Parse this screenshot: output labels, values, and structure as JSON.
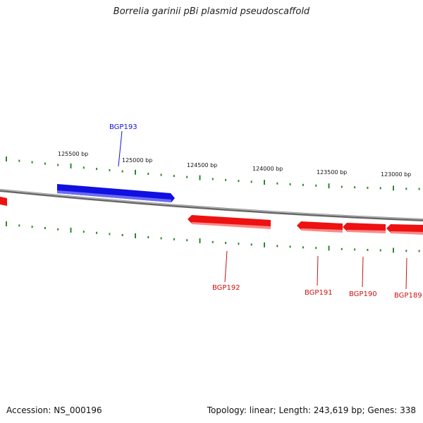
{
  "title": "Borrelia garinii pBi plasmid pseudoscaffold",
  "footer": {
    "accession": "Accession: NS_000196",
    "summary": "Topology: linear; Length: 243,619 bp; Genes: 338"
  },
  "colors": {
    "forward_gene": "#1010e0",
    "reverse_gene": "#ee1111",
    "backbone": "#888888",
    "ticks": "#2a8a2a"
  },
  "ticks": [
    {
      "label": "125500 bp"
    },
    {
      "label": "125000 bp"
    },
    {
      "label": "124500 bp"
    },
    {
      "label": "124000 bp"
    },
    {
      "label": "123500 bp"
    },
    {
      "label": "123000 bp"
    }
  ],
  "genes": [
    {
      "name": "BGP193",
      "strand": "+"
    },
    {
      "name": "BGP192",
      "strand": "-"
    },
    {
      "name": "BGP191",
      "strand": "-"
    },
    {
      "name": "BGP190",
      "strand": "-"
    },
    {
      "name": "BGP189",
      "strand": "-"
    }
  ]
}
